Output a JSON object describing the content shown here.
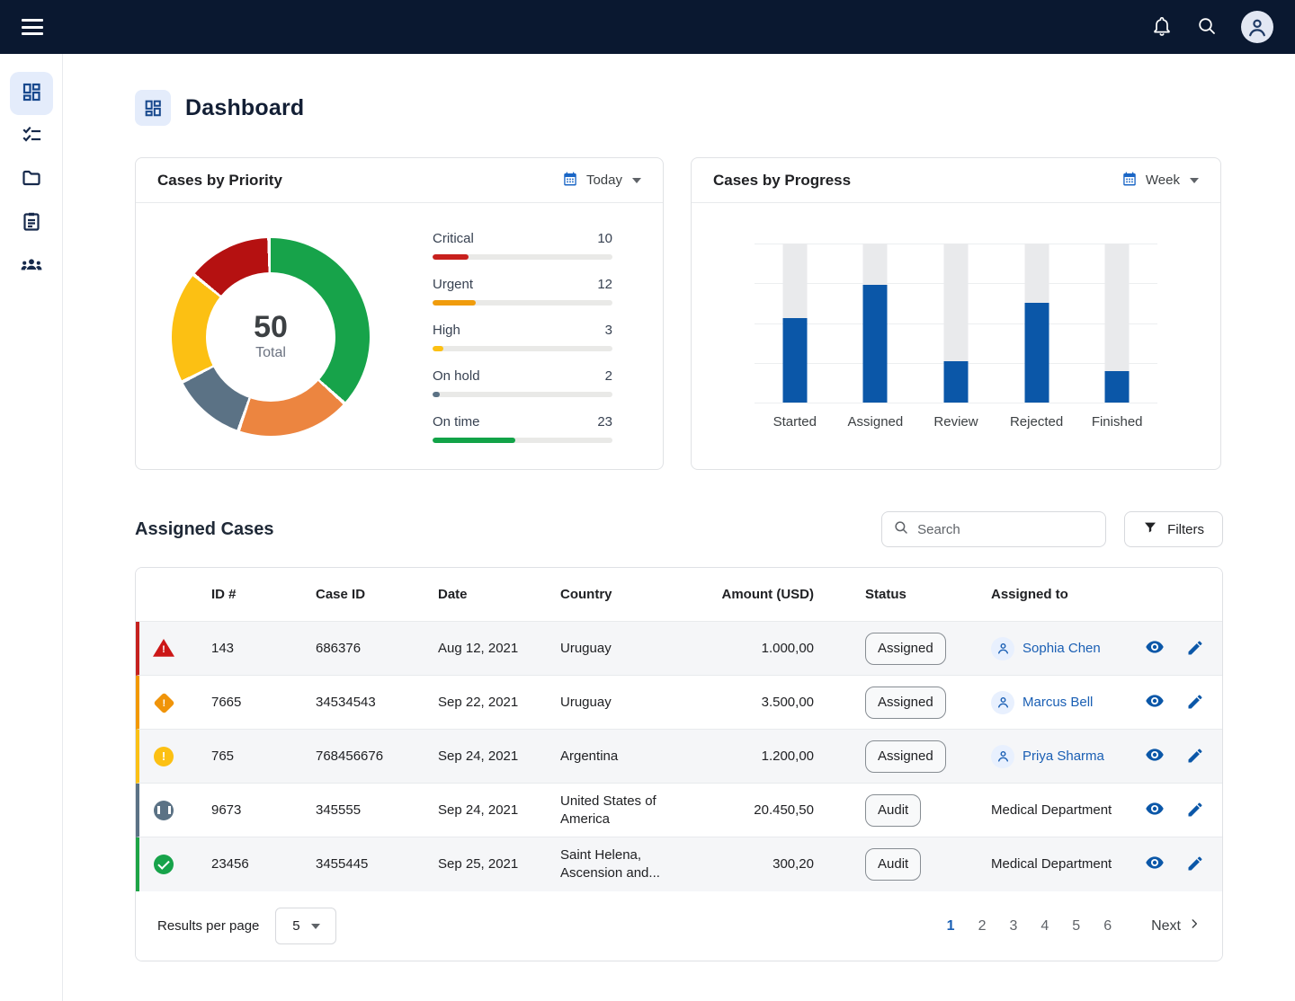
{
  "colors": {
    "topbar_bg": "#0a1830",
    "accent_blue": "#0b57a8",
    "link_blue": "#1a5fb4",
    "severity": {
      "critical": "#c5221f",
      "urgent": "#f29900",
      "high": "#fbc116",
      "onhold": "#5b7285",
      "ontime": "#1ea446"
    }
  },
  "topbar": {
    "menu_icon": "hamburger-icon",
    "bell_icon": "bell-icon",
    "search_icon": "search-icon",
    "avatar_icon": "user-avatar"
  },
  "sidebar": {
    "items": [
      {
        "name": "dashboard",
        "icon": "dashboard-icon",
        "active": true
      },
      {
        "name": "tasks",
        "icon": "checklist-icon",
        "active": false
      },
      {
        "name": "cases",
        "icon": "folder-icon",
        "active": false
      },
      {
        "name": "reports",
        "icon": "clipboard-icon",
        "active": false
      },
      {
        "name": "teams",
        "icon": "people-icon",
        "active": false
      }
    ]
  },
  "page": {
    "title": "Dashboard"
  },
  "chart_data": [
    {
      "type": "donut",
      "title": "Cases by Priority",
      "period": "Today",
      "total": 50,
      "total_label": "Total",
      "items": [
        {
          "label": "Critical",
          "value": 10,
          "color": "#c8201d"
        },
        {
          "label": "Urgent",
          "value": 12,
          "color": "#f09c0c"
        },
        {
          "label": "High",
          "value": 3,
          "color": "#fcc013"
        },
        {
          "label": "On hold",
          "value": 2,
          "color": "#5b7285"
        },
        {
          "label": "On time",
          "value": 23,
          "color": "#12a348"
        }
      ],
      "ring_segments": [
        {
          "label": "On time",
          "color": "#17a34a",
          "start": 0,
          "end": 131
        },
        {
          "label": "Urgent",
          "color": "#ec8540",
          "start": 133,
          "end": 198
        },
        {
          "label": "On hold",
          "color": "#5b7285",
          "start": 200,
          "end": 242
        },
        {
          "label": "High",
          "color": "#fcc013",
          "start": 244,
          "end": 308
        },
        {
          "label": "Critical",
          "color": "#b51111",
          "start": 310,
          "end": 358
        }
      ]
    },
    {
      "type": "bar",
      "title": "Cases by Progress",
      "period": "Week",
      "categories": [
        "Started",
        "Assigned",
        "Review",
        "Rejected",
        "Finished"
      ],
      "values": [
        53,
        74,
        26,
        63,
        20
      ],
      "ylim": [
        0,
        100
      ],
      "bar_color": "#0b57a8",
      "track_color": "#e9eaec",
      "grid": true
    }
  ],
  "cases": {
    "title": "Assigned Cases",
    "search_placeholder": "Search",
    "filters_label": "Filters",
    "columns": {
      "id": "ID #",
      "case_id": "Case ID",
      "date": "Date",
      "country": "Country",
      "amount": "Amount (USD)",
      "status": "Status",
      "assigned_to": "Assigned to"
    },
    "rows": [
      {
        "severity": "critical",
        "id": "143",
        "case_id": "686376",
        "date": "Aug 12, 2021",
        "country": "Uruguay",
        "amount": "1.000,00",
        "status": "Assigned",
        "assigned_to": "Sophia Chen",
        "assignee_type": "user"
      },
      {
        "severity": "urgent",
        "id": "7665",
        "case_id": "34534543",
        "date": "Sep 22, 2021",
        "country": "Uruguay",
        "amount": "3.500,00",
        "status": "Assigned",
        "assigned_to": "Marcus Bell",
        "assignee_type": "user"
      },
      {
        "severity": "high",
        "id": "765",
        "case_id": "768456676",
        "date": "Sep 24, 2021",
        "country": "Argentina",
        "amount": "1.200,00",
        "status": "Assigned",
        "assigned_to": "Priya Sharma",
        "assignee_type": "user"
      },
      {
        "severity": "onhold",
        "id": "9673",
        "case_id": "345555",
        "date": "Sep 24, 2021",
        "country": "United States of America",
        "amount": "20.450,50",
        "status": "Audit",
        "assigned_to": "Medical Department",
        "assignee_type": "department"
      },
      {
        "severity": "ontime",
        "id": "23456",
        "case_id": "3455445",
        "date": "Sep 25, 2021",
        "country": "Saint Helena, Ascension and...",
        "amount": "300,20",
        "status": "Audit",
        "assigned_to": "Medical Department",
        "assignee_type": "department"
      }
    ],
    "pagination": {
      "results_per_page_label": "Results per page",
      "page_size": "5",
      "pages": [
        "1",
        "2",
        "3",
        "4",
        "5",
        "6"
      ],
      "active_page": "1",
      "next_label": "Next"
    }
  }
}
